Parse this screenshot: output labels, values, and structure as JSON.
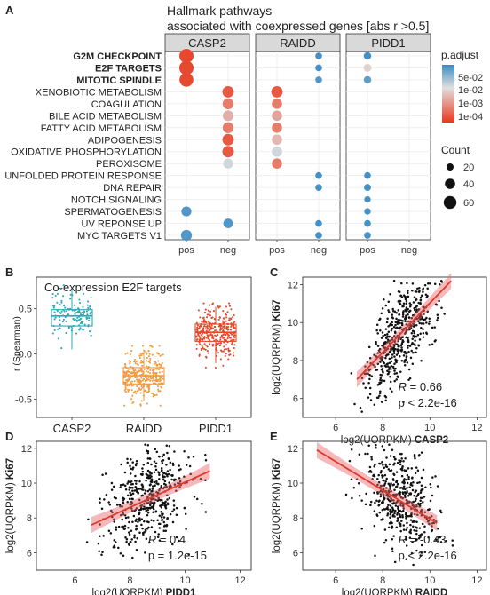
{
  "figure": {
    "panel_letters": [
      "A",
      "B",
      "C",
      "D",
      "E"
    ]
  },
  "chart_data": [
    {
      "panel": "A",
      "type": "scatter",
      "title": "Hallmark pathways",
      "subtitle": "associated with coexpressed genes [abs r >0.5]",
      "facets": [
        "CASP2",
        "RAIDD",
        "PIDD1"
      ],
      "x_categories": [
        "pos",
        "neg"
      ],
      "y_categories": [
        "G2M CHECKPOINT",
        "E2F TARGETS",
        "MITOTIC SPINDLE",
        "XENOBIOTIC METABOLISM",
        "COAGULATION",
        "BILE ACID METABOLISM",
        "FATTY ACID METABOLISM",
        "ADIPOGENESIS",
        "OXIDATIVE PHOSPHORYLATION",
        "PEROXISOME",
        "UNFOLDED PROTEIN RESPONSE",
        "DNA REPAIR",
        "NOTCH SIGNALING",
        "SPERMATOGENESIS",
        "UV REPONSE UP",
        "MYC TARGETS V1"
      ],
      "bold_categories": [
        "G2M CHECKPOINT",
        "E2F TARGETS",
        "MITOTIC SPINDLE"
      ],
      "points": [
        {
          "facet": "CASP2",
          "x": "pos",
          "y": "G2M CHECKPOINT",
          "count": 65,
          "padj": 5e-05
        },
        {
          "facet": "CASP2",
          "x": "pos",
          "y": "E2F TARGETS",
          "count": 65,
          "padj": 5e-05
        },
        {
          "facet": "CASP2",
          "x": "pos",
          "y": "MITOTIC SPINDLE",
          "count": 60,
          "padj": 5e-05
        },
        {
          "facet": "CASP2",
          "x": "neg",
          "y": "XENOBIOTIC METABOLISM",
          "count": 35,
          "padj": 8e-05
        },
        {
          "facet": "CASP2",
          "x": "neg",
          "y": "COAGULATION",
          "count": 30,
          "padj": 0.0002
        },
        {
          "facet": "CASP2",
          "x": "neg",
          "y": "BILE ACID METABOLISM",
          "count": 28,
          "padj": 0.0008
        },
        {
          "facet": "CASP2",
          "x": "neg",
          "y": "FATTY ACID METABOLISM",
          "count": 30,
          "padj": 0.0002
        },
        {
          "facet": "CASP2",
          "x": "neg",
          "y": "ADIPOGENESIS",
          "count": 35,
          "padj": 8e-05
        },
        {
          "facet": "CASP2",
          "x": "neg",
          "y": "OXIDATIVE PHOSPHORYLATION",
          "count": 35,
          "padj": 8e-05
        },
        {
          "facet": "CASP2",
          "x": "neg",
          "y": "PEROXISOME",
          "count": 22,
          "padj": 0.004
        },
        {
          "facet": "CASP2",
          "x": "pos",
          "y": "SPERMATOGENESIS",
          "count": 22,
          "padj": 0.04
        },
        {
          "facet": "CASP2",
          "x": "neg",
          "y": "UV REPONSE UP",
          "count": 20,
          "padj": 0.04
        },
        {
          "facet": "CASP2",
          "x": "pos",
          "y": "MYC TARGETS V1",
          "count": 30,
          "padj": 0.04
        },
        {
          "facet": "RAIDD",
          "x": "pos",
          "y": "XENOBIOTIC METABOLISM",
          "count": 35,
          "padj": 8e-05
        },
        {
          "facet": "RAIDD",
          "x": "pos",
          "y": "COAGULATION",
          "count": 25,
          "padj": 0.0002
        },
        {
          "facet": "RAIDD",
          "x": "pos",
          "y": "BILE ACID METABOLISM",
          "count": 25,
          "padj": 0.0006
        },
        {
          "facet": "RAIDD",
          "x": "pos",
          "y": "FATTY ACID METABOLISM",
          "count": 25,
          "padj": 0.0002
        },
        {
          "facet": "RAIDD",
          "x": "pos",
          "y": "ADIPOGENESIS",
          "count": 25,
          "padj": 0.001
        },
        {
          "facet": "RAIDD",
          "x": "pos",
          "y": "OXIDATIVE PHOSPHORYLATION",
          "count": 25,
          "padj": 0.004
        },
        {
          "facet": "RAIDD",
          "x": "pos",
          "y": "PEROXISOME",
          "count": 25,
          "padj": 0.0002
        },
        {
          "facet": "RAIDD",
          "x": "neg",
          "y": "G2M CHECKPOINT",
          "count": 5,
          "padj": 0.05
        },
        {
          "facet": "RAIDD",
          "x": "neg",
          "y": "E2F TARGETS",
          "count": 5,
          "padj": 0.05
        },
        {
          "facet": "RAIDD",
          "x": "neg",
          "y": "MITOTIC SPINDLE",
          "count": 5,
          "padj": 0.04
        },
        {
          "facet": "RAIDD",
          "x": "neg",
          "y": "UNFOLDED PROTEIN RESPONSE",
          "count": 5,
          "padj": 0.05
        },
        {
          "facet": "RAIDD",
          "x": "neg",
          "y": "DNA REPAIR",
          "count": 5,
          "padj": 0.05
        },
        {
          "facet": "RAIDD",
          "x": "neg",
          "y": "UV REPONSE UP",
          "count": 5,
          "padj": 0.05
        },
        {
          "facet": "RAIDD",
          "x": "neg",
          "y": "MYC TARGETS V1",
          "count": 5,
          "padj": 0.05
        },
        {
          "facet": "PIDD1",
          "x": "pos",
          "y": "G2M CHECKPOINT",
          "count": 8,
          "padj": 0.05
        },
        {
          "facet": "PIDD1",
          "x": "pos",
          "y": "E2F TARGETS",
          "count": 10,
          "padj": 0.002
        },
        {
          "facet": "PIDD1",
          "x": "pos",
          "y": "MITOTIC SPINDLE",
          "count": 8,
          "padj": 0.03
        },
        {
          "facet": "PIDD1",
          "x": "pos",
          "y": "UNFOLDED PROTEIN RESPONSE",
          "count": 5,
          "padj": 0.05
        },
        {
          "facet": "PIDD1",
          "x": "pos",
          "y": "DNA REPAIR",
          "count": 6,
          "padj": 0.05
        },
        {
          "facet": "PIDD1",
          "x": "pos",
          "y": "NOTCH SIGNALING",
          "count": 4,
          "padj": 0.05
        },
        {
          "facet": "PIDD1",
          "x": "pos",
          "y": "SPERMATOGENESIS",
          "count": 4,
          "padj": 0.05
        },
        {
          "facet": "PIDD1",
          "x": "pos",
          "y": "UV REPONSE UP",
          "count": 5,
          "padj": 0.05
        },
        {
          "facet": "PIDD1",
          "x": "pos",
          "y": "MYC TARGETS V1",
          "count": 5,
          "padj": 0.05
        }
      ],
      "color_legend": {
        "title": "p.adjust",
        "ticks": [
          "5e-02",
          "1e-02",
          "1e-03",
          "1e-04"
        ],
        "low_color": "#e8381c",
        "mid_color": "#e0e0e0",
        "high_color": "#3b8bc4"
      },
      "size_legend": {
        "title": "Count",
        "values": [
          "20",
          "40",
          "60"
        ]
      }
    },
    {
      "panel": "B",
      "type": "box",
      "title": "Co-expression E2F targets",
      "ylabel": "r (Spearman)",
      "categories": [
        "CASP2",
        "RAIDD",
        "PIDD1"
      ],
      "colors": [
        "#2aa7b8",
        "#f49a3f",
        "#e2492a"
      ],
      "boxes": [
        {
          "q1": 0.31,
          "median": 0.42,
          "q3": 0.49,
          "whisker_low": 0.05,
          "whisker_high": 0.72,
          "n": 130
        },
        {
          "q1": -0.33,
          "median": -0.24,
          "q3": -0.15,
          "whisker_low": -0.52,
          "whisker_high": 0.05,
          "n": 320
        },
        {
          "q1": 0.14,
          "median": 0.24,
          "q3": 0.33,
          "whisker_low": -0.1,
          "whisker_high": 0.52,
          "n": 320
        }
      ],
      "yticks": [
        "0.5",
        "0.0",
        "-0.5"
      ],
      "ylim": [
        -0.7,
        0.85
      ]
    },
    {
      "panel": "C",
      "type": "scatter",
      "xlabel_prefix": "log2(UQRPKM) ",
      "xlabel_gene": "CASP2",
      "ylabel_prefix": "log2(UQRPKM) ",
      "ylabel_gene": "Ki67",
      "xlim": [
        4.6,
        12.4
      ],
      "ylim": [
        5,
        12.4
      ],
      "xticks": [
        "6",
        "8",
        "10",
        "12"
      ],
      "yticks": [
        "6",
        "8",
        "10",
        "12"
      ],
      "fit": {
        "x1": 6.9,
        "y1": 7.0,
        "x2": 10.9,
        "y2": 12.2
      },
      "cloud": {
        "x_mean": 8.7,
        "x_sd": 0.75,
        "y_sd": 1.2,
        "slope": 1.3,
        "intercept": -2.0,
        "n": 520,
        "seed": 11
      },
      "r_label": "R",
      "r_value": "= 0.66",
      "p_value": "p < 2.2e-16"
    },
    {
      "panel": "D",
      "type": "scatter",
      "xlabel_prefix": "log2(UQRPKM) ",
      "xlabel_gene": "PIDD1",
      "ylabel_prefix": "log2(UQRPKM) ",
      "ylabel_gene": "Ki67",
      "xlim": [
        4.6,
        12.4
      ],
      "ylim": [
        5,
        12.4
      ],
      "xticks": [
        "6",
        "8",
        "10",
        "12"
      ],
      "yticks": [
        "6",
        "8",
        "10",
        "12"
      ],
      "fit": {
        "x1": 6.6,
        "y1": 7.6,
        "x2": 10.9,
        "y2": 10.7
      },
      "cloud": {
        "x_mean": 8.7,
        "x_sd": 0.8,
        "y_sd": 1.4,
        "slope": 0.72,
        "intercept": 2.9,
        "n": 480,
        "seed": 23
      },
      "r_label": "R",
      "r_value": "= 0.4",
      "p_value": "p = 1.2e-15"
    },
    {
      "panel": "E",
      "type": "scatter",
      "xlabel_prefix": "log2(UQRPKM) ",
      "xlabel_gene": "RAIDD",
      "ylabel_prefix": "log2(UQRPKM) ",
      "ylabel_gene": "Ki67",
      "xlim": [
        4.6,
        12.4
      ],
      "ylim": [
        5,
        12.4
      ],
      "xticks": [
        "6",
        "8",
        "10",
        "12"
      ],
      "yticks": [
        "6",
        "8",
        "10",
        "12"
      ],
      "fit": {
        "x1": 5.2,
        "y1": 11.9,
        "x2": 10.3,
        "y2": 7.7
      },
      "cloud": {
        "x_mean": 8.7,
        "x_sd": 0.8,
        "y_sd": 1.35,
        "slope": -0.82,
        "intercept": 16.3,
        "n": 480,
        "seed": 37
      },
      "r_label": "R",
      "r_value": "= -0.43",
      "p_value": "p < 2.2e-16"
    }
  ]
}
